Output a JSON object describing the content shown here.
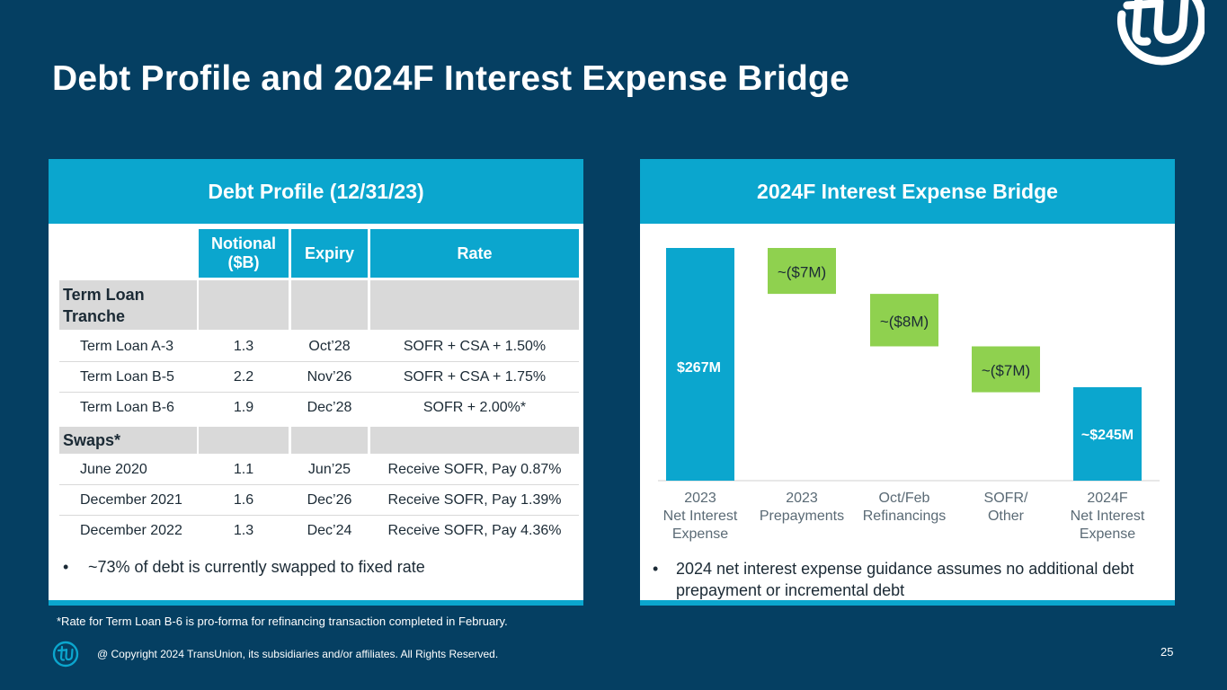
{
  "title": "Debt Profile and 2024F Interest Expense Bridge",
  "colors": {
    "background": "#053f62",
    "accent": "#0ba6ce",
    "green": "#8fd14f",
    "gray": "#d9d9d9"
  },
  "debt_profile": {
    "heading": "Debt Profile (12/31/23)",
    "columns": [
      "Notional ($B)",
      "Expiry",
      "Rate"
    ],
    "groups": [
      {
        "label": "Term Loan Tranche",
        "rows": [
          {
            "name": "Term Loan A-3",
            "notional": "1.3",
            "expiry": "Oct’28",
            "rate": "SOFR + CSA + 1.50%"
          },
          {
            "name": "Term Loan B-5",
            "notional": "2.2",
            "expiry": "Nov’26",
            "rate": "SOFR + CSA + 1.75%"
          },
          {
            "name": "Term Loan B-6",
            "notional": "1.9",
            "expiry": "Dec’28",
            "rate": "SOFR + 2.00%*"
          }
        ]
      },
      {
        "label": "Swaps*",
        "rows": [
          {
            "name": "June 2020",
            "notional": "1.1",
            "expiry": "Jun’25",
            "rate": "Receive SOFR, Pay 0.87%"
          },
          {
            "name": "December 2021",
            "notional": "1.6",
            "expiry": "Dec’26",
            "rate": "Receive SOFR, Pay 1.39%"
          },
          {
            "name": "December 2022",
            "notional": "1.3",
            "expiry": "Dec’24",
            "rate": "Receive SOFR, Pay 4.36%"
          }
        ]
      }
    ],
    "bullet": "~73% of debt is currently swapped to fixed rate"
  },
  "bridge": {
    "heading": "2024F Interest Expense Bridge",
    "bullet": "2024 net interest expense guidance assumes no additional debt prepayment or incremental debt"
  },
  "chart_data": {
    "type": "bar",
    "subtype": "waterfall",
    "title": "2024F Interest Expense Bridge",
    "categories": [
      "2023 Net Interest Expense",
      "2023 Prepayments",
      "Oct/Feb Refinancings",
      "SOFR/ Other",
      "2024F Net Interest Expense"
    ],
    "category_lines": [
      [
        "2023",
        "Net Interest",
        "Expense"
      ],
      [
        "2023",
        "Prepayments"
      ],
      [
        "Oct/Feb",
        "Refinancings"
      ],
      [
        "SOFR/",
        "Other"
      ],
      [
        "2024F",
        "Net Interest",
        "Expense"
      ]
    ],
    "values": [
      267,
      -7,
      -8,
      -7,
      245
    ],
    "labels": [
      "$267M",
      "~($7M)",
      "~($8M)",
      "~($7M)",
      "~$245M"
    ],
    "kinds": [
      "total",
      "delta",
      "delta",
      "delta",
      "total"
    ],
    "colors": [
      "#0ba6ce",
      "#8fd14f",
      "#8fd14f",
      "#8fd14f",
      "#0ba6ce"
    ],
    "note": "axis broken; bar heights not to scale"
  },
  "footnote": "*Rate for Term Loan B-6 is pro-forma for refinancing transaction completed in February.",
  "copyright": "@ Copyright 2024 TransUnion, its subsidiaries and/or affiliates.  All Rights Reserved.",
  "page_number": "25"
}
